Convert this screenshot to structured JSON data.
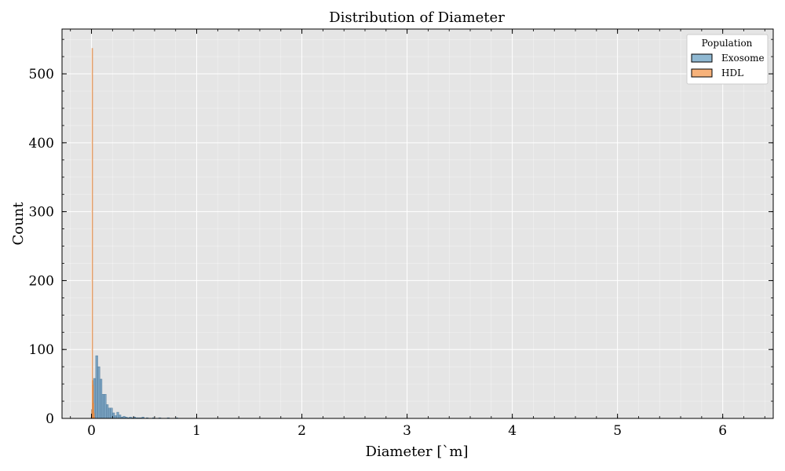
{
  "chart_data": {
    "type": "bar",
    "title": "Distribution of Diameter",
    "xlabel": "Diameter [`m]",
    "ylabel": "Count",
    "xlim": [
      -0.28,
      6.48
    ],
    "ylim": [
      0,
      565
    ],
    "xticks": [
      0,
      1,
      2,
      3,
      4,
      5,
      6
    ],
    "yticks": [
      0,
      100,
      200,
      300,
      400,
      500
    ],
    "grid": true,
    "background": "#e5e5e5",
    "grid_color": "#ffffff",
    "legend": {
      "title": "Population",
      "placement": "top-right",
      "entries": [
        "Exosome",
        "HDL"
      ]
    },
    "bin_width": 0.02,
    "series": [
      {
        "name": "Exosome",
        "color": "#6f9bbd",
        "edge": "#4a7697",
        "bin_starts": [
          0.0,
          0.02,
          0.04,
          0.06,
          0.08,
          0.1,
          0.12,
          0.14,
          0.16,
          0.18,
          0.2,
          0.22,
          0.24,
          0.26,
          0.28,
          0.3,
          0.32,
          0.34,
          0.36,
          0.38,
          0.4,
          0.42,
          0.44,
          0.46,
          0.48,
          0.52,
          0.58,
          0.64,
          0.72,
          0.8
        ],
        "values": [
          13,
          58,
          91,
          75,
          57,
          35,
          35,
          20,
          15,
          15,
          8,
          4,
          9,
          5,
          2,
          3,
          2,
          1,
          2,
          1,
          2,
          1,
          1,
          1,
          2,
          1,
          1,
          1,
          1,
          1
        ]
      },
      {
        "name": "HDL",
        "color": "#f5a462",
        "edge": "#d9823e",
        "bin_starts": [
          -0.004,
          0.0,
          0.004,
          0.008,
          0.012,
          0.016,
          0.02,
          0.024
        ],
        "values": [
          2,
          12,
          537,
          55,
          48,
          22,
          8,
          2
        ]
      }
    ]
  }
}
